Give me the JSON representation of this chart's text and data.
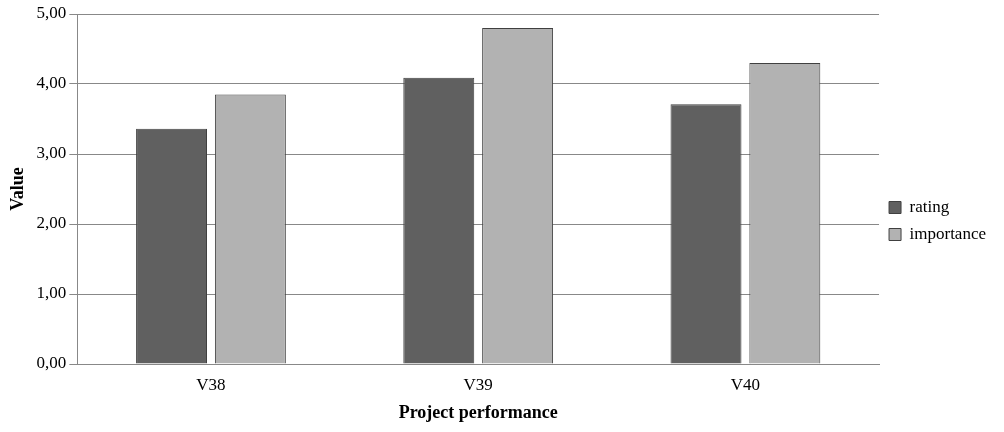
{
  "chart_data": {
    "type": "bar",
    "xlabel": "Project performance",
    "ylabel": "Value",
    "categories": [
      "V38",
      "V39",
      "V40"
    ],
    "series": [
      {
        "name": "rating",
        "color": "#606060",
        "values": [
          3.36,
          4.09,
          3.71
        ]
      },
      {
        "name": "importance",
        "color": "#b2b2b2",
        "values": [
          3.85,
          4.8,
          4.3
        ]
      }
    ],
    "ylim": [
      0,
      5
    ],
    "yticks": [
      {
        "value": 0,
        "label": "0,00"
      },
      {
        "value": 1,
        "label": "1,00"
      },
      {
        "value": 2,
        "label": "2,00"
      },
      {
        "value": 3,
        "label": "3,00"
      },
      {
        "value": 4,
        "label": "4,00"
      },
      {
        "value": 5,
        "label": "5,00"
      }
    ],
    "grid": "y",
    "legend": "right"
  }
}
